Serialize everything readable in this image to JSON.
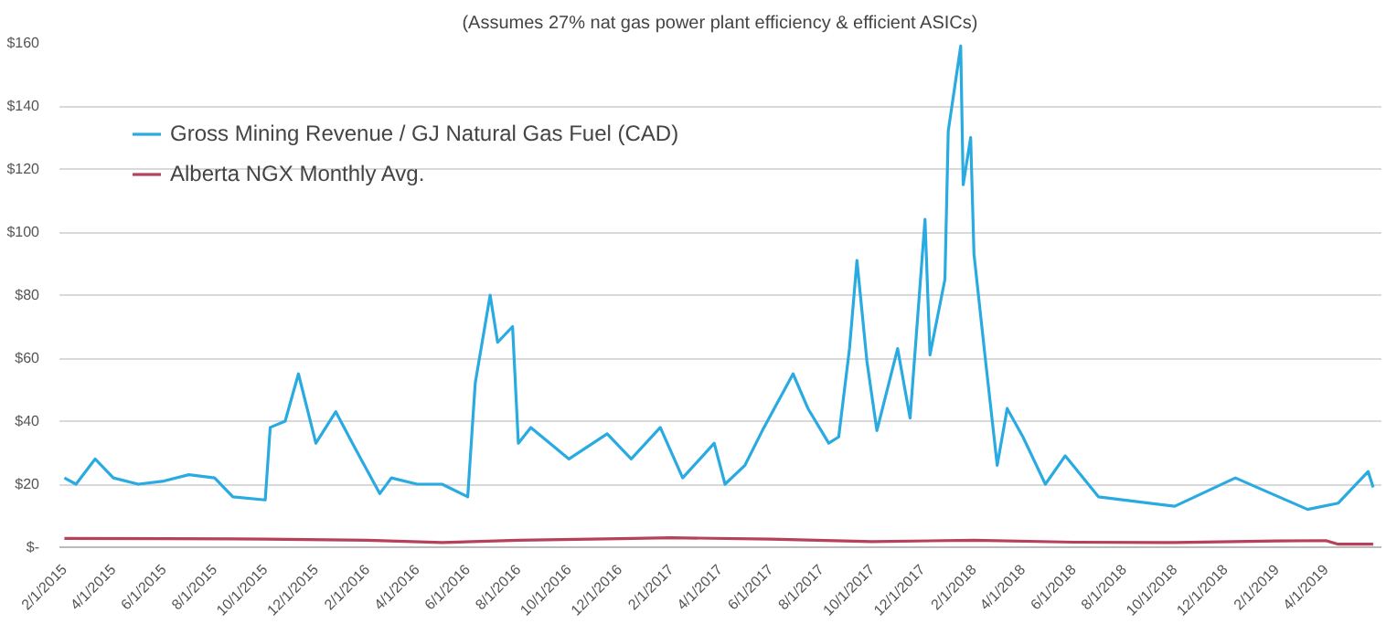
{
  "chart_data": {
    "type": "line",
    "title": "(Assumes 27% nat gas power plant efficiency & efficient ASICs)",
    "xlim": [
      "2015-01-26",
      "2019-06-07"
    ],
    "xticks": [
      {
        "value": "2015-02-01",
        "label": "2/1/2015"
      },
      {
        "value": "2015-04-01",
        "label": "4/1/2015"
      },
      {
        "value": "2015-06-01",
        "label": "6/1/2015"
      },
      {
        "value": "2015-08-01",
        "label": "8/1/2015"
      },
      {
        "value": "2015-10-01",
        "label": "10/1/2015"
      },
      {
        "value": "2015-12-01",
        "label": "12/1/2015"
      },
      {
        "value": "2016-02-01",
        "label": "2/1/2016"
      },
      {
        "value": "2016-04-01",
        "label": "4/1/2016"
      },
      {
        "value": "2016-06-01",
        "label": "6/1/2016"
      },
      {
        "value": "2016-08-01",
        "label": "8/1/2016"
      },
      {
        "value": "2016-10-01",
        "label": "10/1/2016"
      },
      {
        "value": "2016-12-01",
        "label": "12/1/2016"
      },
      {
        "value": "2017-02-01",
        "label": "2/1/2017"
      },
      {
        "value": "2017-04-01",
        "label": "4/1/2017"
      },
      {
        "value": "2017-06-01",
        "label": "6/1/2017"
      },
      {
        "value": "2017-08-01",
        "label": "8/1/2017"
      },
      {
        "value": "2017-10-01",
        "label": "10/1/2017"
      },
      {
        "value": "2017-12-01",
        "label": "12/1/2017"
      },
      {
        "value": "2018-02-01",
        "label": "2/1/2018"
      },
      {
        "value": "2018-04-01",
        "label": "4/1/2018"
      },
      {
        "value": "2018-06-01",
        "label": "6/1/2018"
      },
      {
        "value": "2018-08-01",
        "label": "8/1/2018"
      },
      {
        "value": "2018-10-01",
        "label": "10/1/2018"
      },
      {
        "value": "2018-12-01",
        "label": "12/1/2018"
      },
      {
        "value": "2019-02-01",
        "label": "2/1/2019"
      },
      {
        "value": "2019-04-01",
        "label": "4/1/2019"
      }
    ],
    "ylim": [
      0,
      160
    ],
    "yticks": [
      {
        "value": 0,
        "label": "$-"
      },
      {
        "value": 20,
        "label": "$20"
      },
      {
        "value": 40,
        "label": "$40"
      },
      {
        "value": 60,
        "label": "$60"
      },
      {
        "value": 80,
        "label": "$80"
      },
      {
        "value": 100,
        "label": "$100"
      },
      {
        "value": 120,
        "label": "$120"
      },
      {
        "value": 140,
        "label": "$140"
      },
      {
        "value": 160,
        "label": "$160"
      }
    ],
    "grid": "y",
    "legend": "top left",
    "line_style": "solid",
    "series": [
      {
        "name": "Gross Mining Revenue / GJ Natural Gas Fuel (CAD)",
        "color": "#29abe2",
        "x": [
          "2015-02-01",
          "2015-02-15",
          "2015-03-10",
          "2015-04-01",
          "2015-05-01",
          "2015-06-01",
          "2015-07-01",
          "2015-08-01",
          "2015-08-23",
          "2015-10-01",
          "2015-10-07",
          "2015-10-25",
          "2015-11-10",
          "2015-12-01",
          "2015-12-25",
          "2016-01-16",
          "2016-02-16",
          "2016-03-01",
          "2016-04-01",
          "2016-05-01",
          "2016-06-01",
          "2016-06-10",
          "2016-06-28",
          "2016-07-07",
          "2016-07-25",
          "2016-08-01",
          "2016-08-16",
          "2016-10-01",
          "2016-11-16",
          "2016-12-15",
          "2017-01-19",
          "2017-02-15",
          "2017-03-25",
          "2017-04-07",
          "2017-05-01",
          "2017-05-22",
          "2017-06-28",
          "2017-07-16",
          "2017-08-10",
          "2017-08-22",
          "2017-09-04",
          "2017-09-13",
          "2017-09-25",
          "2017-10-07",
          "2017-11-01",
          "2017-11-16",
          "2017-12-04",
          "2017-12-10",
          "2017-12-28",
          "2018-01-01",
          "2018-01-16",
          "2018-01-19",
          "2018-01-28",
          "2018-02-01",
          "2018-02-15",
          "2018-03-01",
          "2018-03-13",
          "2018-04-01",
          "2018-04-28",
          "2018-05-22",
          "2018-07-01",
          "2018-10-01",
          "2018-12-13",
          "2019-03-10",
          "2019-04-16",
          "2019-05-22",
          "2019-05-28"
        ],
        "values": [
          22,
          20,
          28,
          22,
          20,
          21,
          23,
          22,
          16,
          15,
          38,
          40,
          55,
          33,
          43,
          32,
          17,
          22,
          20,
          20,
          16,
          52,
          80,
          65,
          70,
          33,
          38,
          28,
          36,
          28,
          38,
          22,
          33,
          20,
          26,
          37,
          55,
          44,
          33,
          35,
          63,
          91,
          59,
          37,
          63,
          41,
          104,
          61,
          85,
          132,
          159,
          115,
          130,
          93,
          59,
          26,
          44,
          35,
          20,
          29,
          16,
          13,
          22,
          12,
          14,
          24,
          19
        ]
      },
      {
        "name": "Alberta NGX Monthly Avg.",
        "color": "#b5425a",
        "x": [
          "2015-02-01",
          "2015-06-01",
          "2015-10-01",
          "2016-02-01",
          "2016-05-01",
          "2016-08-01",
          "2016-12-01",
          "2017-02-01",
          "2017-06-01",
          "2017-10-01",
          "2018-02-01",
          "2018-06-01",
          "2018-10-01",
          "2019-02-01",
          "2019-04-01",
          "2019-04-15",
          "2019-05-28"
        ],
        "values": [
          2.8,
          2.7,
          2.6,
          2.2,
          1.5,
          2.2,
          2.7,
          3.0,
          2.6,
          1.8,
          2.2,
          1.6,
          1.5,
          2.0,
          2.1,
          1.0,
          1.0
        ]
      }
    ]
  }
}
